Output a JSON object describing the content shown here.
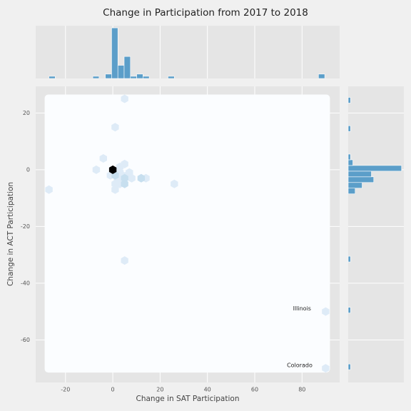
{
  "chart_data": {
    "type": "hexbin",
    "title": "Change in Participation from 2017 to 2018",
    "xlabel": "Change in SAT Participation",
    "ylabel": "Change in ACT Participation",
    "xlim": [
      -32.6,
      95.9
    ],
    "ylim": [
      -75,
      29.4
    ],
    "xticks": [
      -20,
      0,
      20,
      40,
      60,
      80
    ],
    "yticks": [
      20,
      0,
      -20,
      -40,
      -60
    ],
    "grid": true,
    "hexes": {
      "x": [
        0,
        -1,
        1,
        2,
        3,
        5,
        5,
        3,
        1,
        1,
        -4,
        -7,
        -27,
        5,
        1,
        5,
        7,
        8,
        12,
        14,
        26,
        5,
        90,
        90,
        4,
        6,
        3
      ],
      "y": [
        0,
        -2,
        -2,
        -3,
        -1,
        -3,
        -5,
        -5,
        -5,
        -7,
        4,
        0,
        -7,
        25,
        15,
        2,
        -1,
        -3,
        -3,
        -3,
        -5,
        -32,
        -50,
        -70,
        -2,
        -2,
        1
      ],
      "counts": [
        12,
        1,
        2,
        1,
        1,
        2,
        2,
        1,
        1,
        1,
        1,
        1,
        1,
        1,
        1,
        1,
        1,
        1,
        2,
        1,
        1,
        1,
        1,
        1,
        1,
        1,
        1
      ]
    },
    "annotations": [
      {
        "text": "Illinois",
        "x": 80,
        "y": -49
      },
      {
        "text": "Colorado",
        "x": 79,
        "y": -69
      }
    ],
    "x_hist": {
      "color": "#5b9ec9",
      "lim": [
        0,
        24
      ],
      "bins": [
        -27.0,
        -24.35,
        -21.7,
        -19.05,
        -16.4,
        -13.75,
        -11.1,
        -8.45,
        -5.8,
        -3.15,
        -0.5,
        2.15,
        4.8,
        7.45,
        10.1,
        12.75,
        15.4,
        18.05,
        20.7,
        23.35,
        26.0,
        28.65,
        31.3,
        33.95,
        36.6,
        39.25,
        41.9,
        44.55,
        47.2,
        49.85,
        52.5,
        55.15,
        57.8,
        60.45,
        63.1,
        65.75,
        68.4,
        71.05,
        73.7,
        76.35,
        79.0,
        81.65,
        84.3,
        86.95,
        89.6,
        92.25
      ],
      "counts": [
        1,
        0,
        0,
        0,
        0,
        0,
        0,
        1,
        0,
        2,
        23,
        6,
        10,
        1,
        2,
        1,
        0,
        0,
        0,
        1,
        0,
        0,
        0,
        0,
        0,
        0,
        0,
        0,
        0,
        0,
        0,
        0,
        0,
        0,
        0,
        0,
        0,
        0,
        0,
        0,
        0,
        0,
        0,
        2,
        0
      ]
    },
    "y_hist": {
      "color": "#5b9ec9",
      "lim": [
        0,
        24
      ],
      "bins": [
        -70.5,
        -68.5,
        -66.5,
        -64.5,
        -62.5,
        -60.5,
        -58.5,
        -56.5,
        -54.5,
        -52.5,
        -50.5,
        -48.5,
        -46.5,
        -44.5,
        -42.5,
        -40.5,
        -38.5,
        -36.5,
        -34.5,
        -32.5,
        -30.5,
        -28.5,
        -26.5,
        -24.5,
        -22.5,
        -20.5,
        -18.5,
        -16.5,
        -14.5,
        -12.5,
        -10.5,
        -8.5,
        -6.5,
        -4.5,
        -2.5,
        -0.5,
        1.5,
        3.5,
        5.5,
        7.5,
        9.5,
        11.5,
        13.5,
        15.5,
        17.5,
        19.5,
        21.5,
        23.5,
        25.5
      ],
      "counts": [
        1,
        0,
        0,
        0,
        0,
        0,
        0,
        0,
        0,
        0,
        1,
        0,
        0,
        0,
        0,
        0,
        0,
        0,
        0,
        1,
        0,
        0,
        0,
        0,
        0,
        0,
        0,
        0,
        0,
        0,
        0,
        3,
        6,
        11,
        10,
        23,
        2,
        1,
        0,
        0,
        0,
        0,
        1,
        0,
        0,
        0,
        0,
        1
      ]
    }
  }
}
